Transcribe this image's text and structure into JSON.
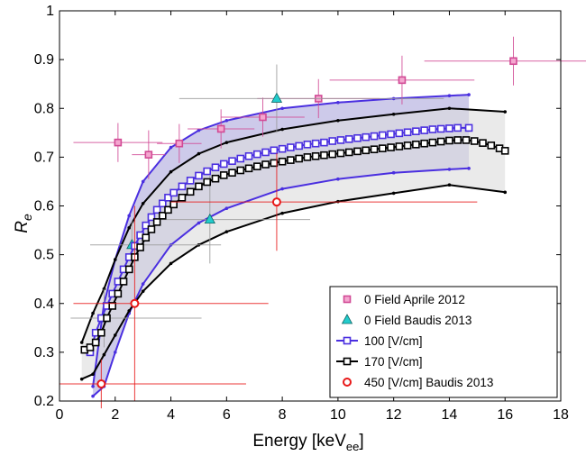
{
  "chart_data": {
    "type": "scatter",
    "title": "",
    "xlabel": "Energy [keV",
    "xlabel_sub": "ee",
    "xlabel_close": "]",
    "ylabel": "R",
    "ylabel_sub": "e",
    "xlim": [
      0,
      18
    ],
    "ylim": [
      0.2,
      1.0
    ],
    "x_ticks": [
      0,
      2,
      4,
      6,
      8,
      10,
      12,
      14,
      16,
      18
    ],
    "y_ticks": [
      0.2,
      0.3,
      0.4,
      0.5,
      0.6,
      0.7,
      0.8,
      0.9,
      1.0
    ],
    "grid": false,
    "legend_position": "bottom-right",
    "bands": [
      {
        "name": "100 [V/cm] band",
        "color": "#bcb8e3",
        "x": [
          1.2,
          1.6,
          2.0,
          2.5,
          3.0,
          4.0,
          5.0,
          6.0,
          8.0,
          10.0,
          12.0,
          14.0,
          14.7
        ],
        "upper": [
          0.23,
          0.4,
          0.49,
          0.58,
          0.65,
          0.72,
          0.755,
          0.775,
          0.8,
          0.812,
          0.82,
          0.826,
          0.828
        ],
        "lower": [
          0.21,
          0.23,
          0.3,
          0.38,
          0.44,
          0.52,
          0.565,
          0.595,
          0.635,
          0.655,
          0.668,
          0.675,
          0.677
        ]
      },
      {
        "name": "170 [V/cm] band",
        "color": "#dcdcdc",
        "x": [
          0.8,
          1.2,
          1.6,
          2.0,
          2.5,
          3.0,
          4.0,
          5.0,
          6.0,
          8.0,
          10.0,
          12.0,
          14.0,
          16.0
        ],
        "upper": [
          0.32,
          0.38,
          0.43,
          0.49,
          0.555,
          0.605,
          0.67,
          0.707,
          0.73,
          0.757,
          0.775,
          0.788,
          0.8,
          0.793
        ],
        "lower": [
          0.245,
          0.255,
          0.295,
          0.335,
          0.385,
          0.425,
          0.482,
          0.52,
          0.547,
          0.585,
          0.609,
          0.626,
          0.643,
          0.628
        ]
      }
    ],
    "series": [
      {
        "name": "0 Field Aprile 2012",
        "kind": "points",
        "marker": "square",
        "color": "#d14a95",
        "points": [
          {
            "x": 2.1,
            "y": 0.73,
            "xerr": [
              1.6,
              1.6
            ],
            "yerr": [
              0.04,
              0.04
            ]
          },
          {
            "x": 3.2,
            "y": 0.705,
            "xerr": [
              0.6,
              0.6
            ],
            "yerr": [
              0.05,
              0.05
            ]
          },
          {
            "x": 4.3,
            "y": 0.728,
            "xerr": [
              0.8,
              0.8
            ],
            "yerr": [
              0.04,
              0.04
            ]
          },
          {
            "x": 5.8,
            "y": 0.758,
            "xerr": [
              1.2,
              1.2
            ],
            "yerr": [
              0.04,
              0.04
            ]
          },
          {
            "x": 7.3,
            "y": 0.782,
            "xerr": [
              1.5,
              1.5
            ],
            "yerr": [
              0.04,
              0.04
            ]
          },
          {
            "x": 9.3,
            "y": 0.82,
            "xerr": [
              2.2,
              2.2
            ],
            "yerr": [
              0.04,
              0.04
            ]
          },
          {
            "x": 12.3,
            "y": 0.858,
            "xerr": [
              2.6,
              2.6
            ],
            "yerr": [
              0.05,
              0.05
            ]
          },
          {
            "x": 16.3,
            "y": 0.897,
            "xerr": [
              3.2,
              3.2
            ],
            "yerr": [
              0.05,
              0.05
            ]
          }
        ]
      },
      {
        "name": "0 Field Baudis 2013",
        "kind": "points",
        "marker": "triangle",
        "color": "#22cccc",
        "points": [
          {
            "x": 1.6,
            "y": 0.37,
            "xerr": [
              1.2,
              3.5
            ],
            "yerr": [
              0.06,
              0.06
            ]
          },
          {
            "x": 2.6,
            "y": 0.52,
            "xerr": [
              1.5,
              3.2
            ],
            "yerr": [
              0.05,
              0.05
            ]
          },
          {
            "x": 5.4,
            "y": 0.572,
            "xerr": [
              2.2,
              3.6
            ],
            "yerr": [
              0.09,
              0.09
            ]
          },
          {
            "x": 7.8,
            "y": 0.82,
            "xerr": [
              3.5,
              6.0
            ],
            "yerr": [
              0.07,
              0.07
            ]
          }
        ]
      },
      {
        "name": "100 [V/cm]",
        "kind": "line",
        "marker": "square",
        "color": "#4a2fe0",
        "x": [
          1.1,
          1.3,
          1.5,
          1.7,
          1.9,
          2.1,
          2.3,
          2.5,
          2.7,
          2.9,
          3.1,
          3.3,
          3.5,
          3.7,
          3.9,
          4.1,
          4.4,
          4.7,
          5.0,
          5.3,
          5.6,
          5.9,
          6.2,
          6.5,
          6.8,
          7.1,
          7.4,
          7.7,
          8.0,
          8.3,
          8.6,
          8.9,
          9.2,
          9.5,
          9.8,
          10.1,
          10.4,
          10.7,
          11.0,
          11.3,
          11.6,
          11.9,
          12.2,
          12.5,
          12.8,
          13.1,
          13.4,
          13.7,
          14.0,
          14.3,
          14.7
        ],
        "y": [
          0.3,
          0.34,
          0.37,
          0.395,
          0.42,
          0.445,
          0.47,
          0.495,
          0.518,
          0.54,
          0.56,
          0.577,
          0.592,
          0.605,
          0.617,
          0.627,
          0.64,
          0.652,
          0.662,
          0.671,
          0.679,
          0.686,
          0.692,
          0.697,
          0.702,
          0.706,
          0.71,
          0.714,
          0.717,
          0.72,
          0.723,
          0.726,
          0.728,
          0.73,
          0.733,
          0.735,
          0.737,
          0.739,
          0.741,
          0.743,
          0.745,
          0.747,
          0.749,
          0.751,
          0.753,
          0.755,
          0.757,
          0.758,
          0.759,
          0.76,
          0.76
        ]
      },
      {
        "name": "170 [V/cm]",
        "kind": "line",
        "marker": "square",
        "color": "#000000",
        "x": [
          0.9,
          1.1,
          1.3,
          1.5,
          1.7,
          1.9,
          2.1,
          2.3,
          2.5,
          2.7,
          2.9,
          3.1,
          3.3,
          3.5,
          3.7,
          3.9,
          4.1,
          4.4,
          4.7,
          5.0,
          5.3,
          5.6,
          5.9,
          6.2,
          6.5,
          6.8,
          7.1,
          7.4,
          7.7,
          8.0,
          8.3,
          8.6,
          8.9,
          9.2,
          9.5,
          9.8,
          10.1,
          10.4,
          10.7,
          11.0,
          11.3,
          11.6,
          11.9,
          12.2,
          12.5,
          12.8,
          13.1,
          13.4,
          13.7,
          14.0,
          14.3,
          14.6,
          14.9,
          15.2,
          15.5,
          15.8,
          16.0
        ],
        "y": [
          0.305,
          0.31,
          0.32,
          0.34,
          0.37,
          0.395,
          0.42,
          0.445,
          0.47,
          0.495,
          0.515,
          0.535,
          0.552,
          0.567,
          0.58,
          0.592,
          0.603,
          0.617,
          0.629,
          0.64,
          0.649,
          0.656,
          0.663,
          0.668,
          0.673,
          0.677,
          0.681,
          0.685,
          0.688,
          0.691,
          0.694,
          0.697,
          0.7,
          0.702,
          0.704,
          0.706,
          0.708,
          0.71,
          0.712,
          0.714,
          0.716,
          0.718,
          0.72,
          0.722,
          0.724,
          0.726,
          0.728,
          0.73,
          0.732,
          0.734,
          0.735,
          0.735,
          0.733,
          0.729,
          0.724,
          0.718,
          0.713
        ]
      },
      {
        "name": "450 [V/cm] Baudis 2013",
        "kind": "points",
        "marker": "circle",
        "color": "#e81818",
        "points": [
          {
            "x": 1.5,
            "y": 0.235,
            "xerr": [
              1.5,
              5.2
            ],
            "yerr": [
              0.05,
              0.05
            ]
          },
          {
            "x": 2.7,
            "y": 0.4,
            "xerr": [
              2.2,
              4.8
            ],
            "yerr": [
              0.2,
              0.2
            ]
          },
          {
            "x": 7.8,
            "y": 0.608,
            "xerr": [
              3.8,
              7.2
            ],
            "yerr": [
              0.1,
              0.1
            ]
          }
        ]
      }
    ]
  }
}
